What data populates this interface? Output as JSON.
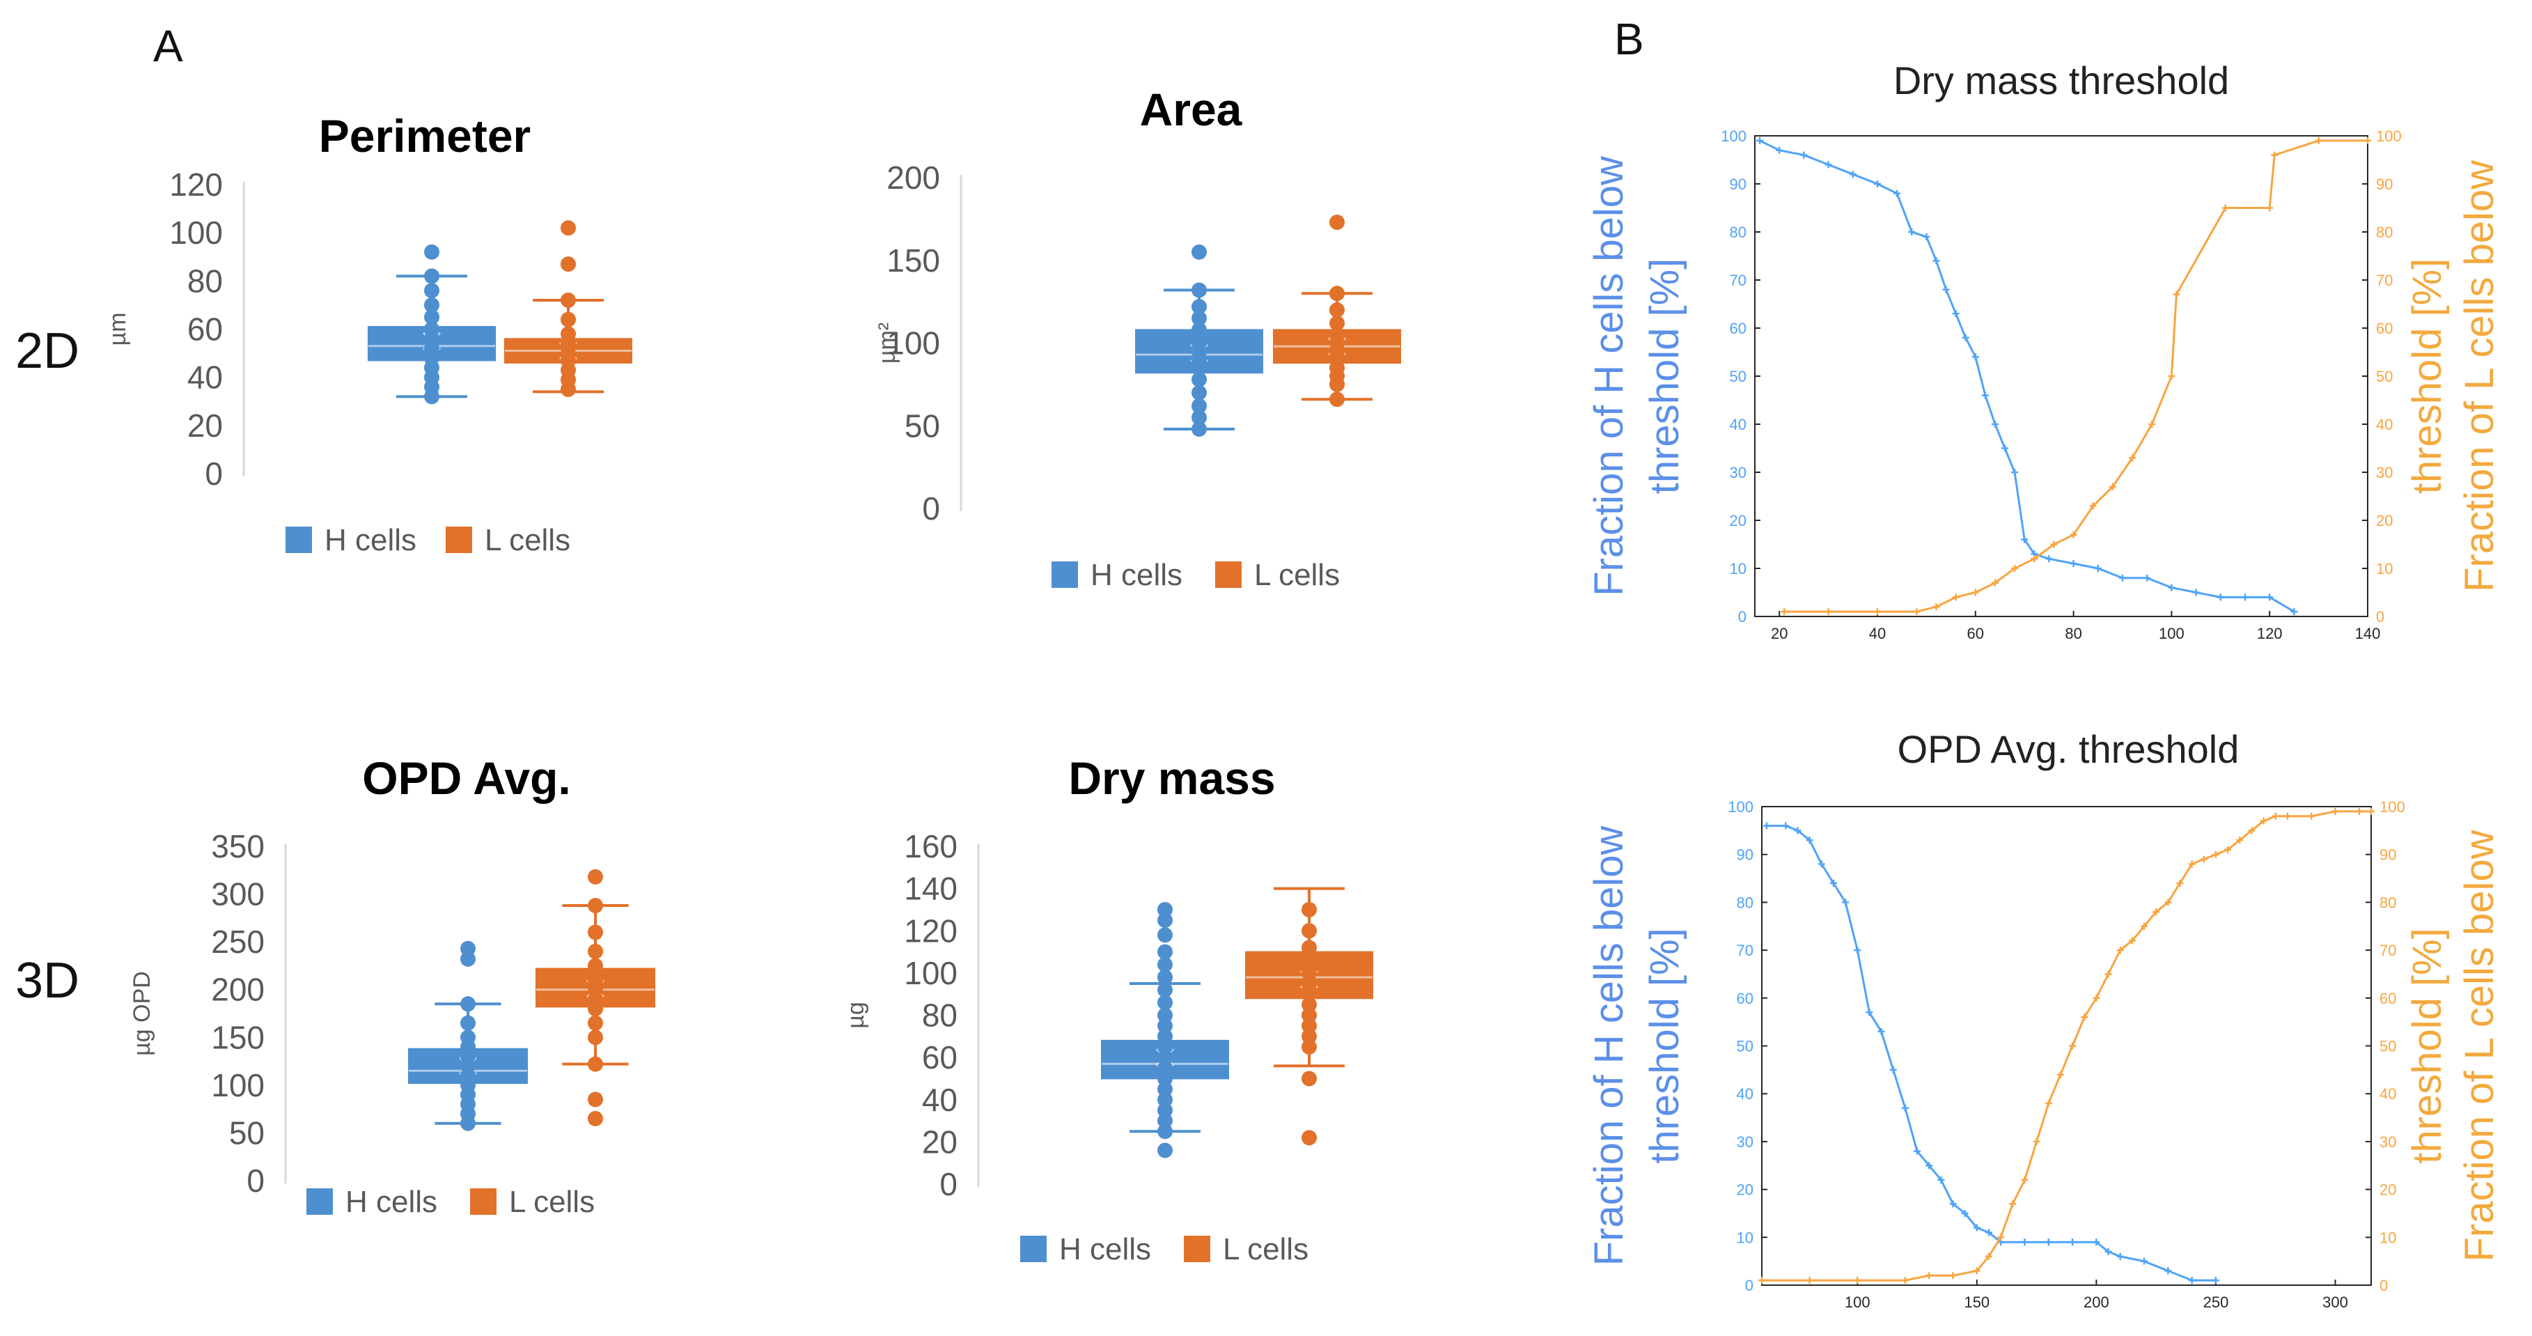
{
  "panels": {
    "a": "A",
    "b": "B",
    "row_2d": "2D",
    "row_3d": "3D"
  },
  "colors": {
    "h": "#4E8FD0",
    "l": "#E2712A",
    "h_line": "#4FA3F7",
    "l_line": "#F8A540",
    "h_label": "#5B8FE8",
    "l_label": "#F3A93D"
  },
  "chart_data": [
    {
      "id": "perimeter",
      "type": "box",
      "title": "Perimeter",
      "ylabel": "µm",
      "ylim": [
        0,
        120
      ],
      "yticks": [
        0,
        20,
        40,
        60,
        80,
        100,
        120
      ],
      "legend": [
        "H cells",
        "L cells"
      ],
      "series": [
        {
          "name": "H cells",
          "min": 32,
          "q1": 47,
          "median": 53,
          "q3": 61,
          "max": 82,
          "mean": 55,
          "points": [
            92,
            82,
            76,
            70,
            65,
            60,
            56,
            52,
            48,
            44,
            40,
            36,
            32
          ]
        },
        {
          "name": "L cells",
          "min": 34,
          "q1": 46,
          "median": 51,
          "q3": 56,
          "max": 72,
          "mean": 51,
          "points": [
            102,
            87,
            72,
            64,
            58,
            54,
            50,
            47,
            43,
            39,
            35
          ]
        }
      ]
    },
    {
      "id": "area",
      "type": "box",
      "title": "Area",
      "ylabel": "µm²",
      "ylim": [
        0,
        200
      ],
      "yticks": [
        0,
        50,
        100,
        150,
        200
      ],
      "legend": [
        "H cells",
        "L cells"
      ],
      "series": [
        {
          "name": "H cells",
          "min": 48,
          "q1": 82,
          "median": 93,
          "q3": 108,
          "max": 132,
          "mean": 94,
          "points": [
            155,
            132,
            122,
            115,
            108,
            100,
            95,
            90,
            85,
            78,
            70,
            62,
            55,
            48
          ]
        },
        {
          "name": "L cells",
          "min": 66,
          "q1": 88,
          "median": 98,
          "q3": 108,
          "max": 130,
          "mean": 98,
          "points": [
            173,
            130,
            120,
            112,
            105,
            100,
            95,
            90,
            85,
            80,
            75,
            66
          ]
        }
      ]
    },
    {
      "id": "opd",
      "type": "box",
      "title": "OPD Avg.",
      "ylabel": "µg OPD",
      "ylim": [
        0,
        350
      ],
      "yticks": [
        0,
        50,
        100,
        150,
        200,
        250,
        300,
        350
      ],
      "legend": [
        "H cells",
        "L cells"
      ],
      "series": [
        {
          "name": "H cells",
          "min": 60,
          "q1": 102,
          "median": 115,
          "q3": 138,
          "max": 185,
          "mean": 120,
          "points": [
            243,
            232,
            185,
            165,
            150,
            140,
            130,
            120,
            110,
            100,
            90,
            80,
            70,
            60
          ]
        },
        {
          "name": "L cells",
          "min": 122,
          "q1": 182,
          "median": 200,
          "q3": 222,
          "max": 288,
          "mean": 201,
          "points": [
            318,
            288,
            260,
            240,
            225,
            210,
            200,
            190,
            180,
            165,
            150,
            122,
            85,
            65
          ]
        }
      ]
    },
    {
      "id": "drymass",
      "type": "box",
      "title": "Dry mass",
      "ylabel": "µg",
      "ylim": [
        0,
        160
      ],
      "yticks": [
        0,
        20,
        40,
        60,
        80,
        100,
        120,
        140,
        160
      ],
      "legend": [
        "H cells",
        "L cells"
      ],
      "series": [
        {
          "name": "H cells",
          "min": 25,
          "q1": 50,
          "median": 57,
          "q3": 68,
          "max": 95,
          "mean": 60,
          "points": [
            130,
            125,
            118,
            110,
            104,
            98,
            92,
            86,
            80,
            75,
            70,
            65,
            60,
            55,
            50,
            45,
            40,
            35,
            30,
            25,
            16
          ]
        },
        {
          "name": "L cells",
          "min": 56,
          "q1": 88,
          "median": 98,
          "q3": 110,
          "max": 140,
          "mean": 97,
          "points": [
            130,
            120,
            112,
            105,
            100,
            95,
            90,
            85,
            80,
            75,
            70,
            65,
            50,
            22
          ]
        }
      ]
    },
    {
      "id": "dry_threshold",
      "type": "line",
      "title": "Dry mass threshold",
      "xlim": [
        15,
        140
      ],
      "xticks": [
        20,
        40,
        60,
        80,
        100,
        120,
        140
      ],
      "ylim": [
        0,
        100
      ],
      "yticks": [
        0,
        10,
        20,
        30,
        40,
        50,
        60,
        70,
        80,
        90,
        100
      ],
      "ylabel_left": [
        "Fraction of H cells below",
        "threshold [%]"
      ],
      "ylabel_right": [
        "Fraction of L cells below",
        "threshold [%]"
      ],
      "series": [
        {
          "name": "H cells",
          "axis": "left",
          "x": [
            16,
            20,
            25,
            30,
            35,
            40,
            44,
            47,
            50,
            52,
            54,
            56,
            58,
            60,
            62,
            64,
            66,
            68,
            70,
            72,
            75,
            80,
            85,
            90,
            95,
            100,
            105,
            110,
            115,
            120,
            125
          ],
          "y": [
            99,
            97,
            96,
            94,
            92,
            90,
            88,
            80,
            79,
            74,
            68,
            63,
            58,
            54,
            46,
            40,
            35,
            30,
            16,
            13,
            12,
            11,
            10,
            8,
            8,
            6,
            5,
            4,
            4,
            4,
            1
          ]
        },
        {
          "name": "L cells",
          "axis": "right",
          "x": [
            21,
            30,
            40,
            48,
            52,
            56,
            60,
            64,
            68,
            72,
            76,
            80,
            84,
            88,
            92,
            96,
            100,
            101,
            111,
            120,
            121,
            130,
            140
          ],
          "y": [
            1,
            1,
            1,
            1,
            2,
            4,
            5,
            7,
            10,
            12,
            15,
            17,
            23,
            27,
            33,
            40,
            50,
            67,
            85,
            85,
            96,
            99,
            99
          ]
        }
      ]
    },
    {
      "id": "opd_threshold",
      "type": "line",
      "title": "OPD Avg. threshold",
      "xlim": [
        60,
        315
      ],
      "xticks": [
        100,
        150,
        200,
        250,
        300
      ],
      "ylim": [
        0,
        100
      ],
      "yticks": [
        0,
        10,
        20,
        30,
        40,
        50,
        60,
        70,
        80,
        90,
        100
      ],
      "ylabel_left": [
        "Fraction of H cells below",
        "threshold [%]"
      ],
      "ylabel_right": [
        "Fraction of L cells below",
        "threshold [%]"
      ],
      "series": [
        {
          "name": "H cells",
          "axis": "left",
          "x": [
            62,
            70,
            75,
            80,
            85,
            90,
            95,
            100,
            105,
            110,
            115,
            120,
            125,
            130,
            135,
            140,
            145,
            150,
            155,
            160,
            170,
            180,
            190,
            200,
            205,
            210,
            220,
            230,
            240,
            250
          ],
          "y": [
            96,
            96,
            95,
            93,
            88,
            84,
            80,
            70,
            57,
            53,
            45,
            37,
            28,
            25,
            22,
            17,
            15,
            12,
            11,
            9,
            9,
            9,
            9,
            9,
            7,
            6,
            5,
            3,
            1,
            1
          ]
        },
        {
          "name": "L cells",
          "axis": "right",
          "x": [
            60,
            80,
            100,
            120,
            130,
            140,
            150,
            155,
            160,
            165,
            170,
            175,
            180,
            185,
            190,
            195,
            200,
            205,
            210,
            215,
            220,
            225,
            230,
            235,
            240,
            245,
            250,
            255,
            260,
            265,
            270,
            275,
            280,
            290,
            300,
            310,
            315
          ],
          "y": [
            1,
            1,
            1,
            1,
            2,
            2,
            3,
            6,
            10,
            17,
            22,
            30,
            38,
            44,
            50,
            56,
            60,
            65,
            70,
            72,
            75,
            78,
            80,
            84,
            88,
            89,
            90,
            91,
            93,
            95,
            97,
            98,
            98,
            98,
            99,
            99,
            99
          ]
        }
      ]
    }
  ]
}
